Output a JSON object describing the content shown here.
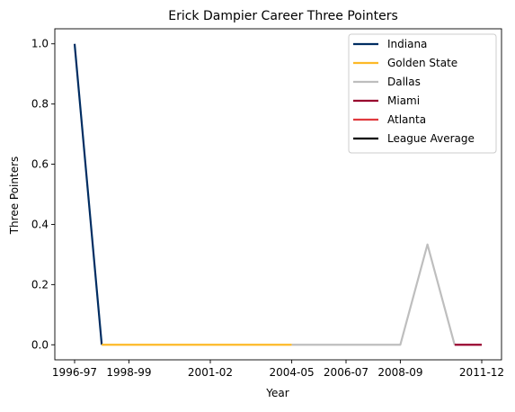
{
  "chart_data": {
    "type": "line",
    "title": "Erick Dampier Career Three Pointers",
    "xlabel": "Year",
    "ylabel": "Three Pointers",
    "categories": [
      "1996-97",
      "1997-98",
      "1998-99",
      "1999-00",
      "2000-01",
      "2001-02",
      "2002-03",
      "2003-04",
      "2004-05",
      "2005-06",
      "2006-07",
      "2007-08",
      "2008-09",
      "2009-10",
      "2010-11",
      "2011-12"
    ],
    "xticks": [
      "1996-97",
      "1998-99",
      "2001-02",
      "2004-05",
      "2006-07",
      "2008-09",
      "2011-12"
    ],
    "ylim": [
      -0.05,
      1.05
    ],
    "yticks": [
      0.0,
      0.2,
      0.4,
      0.6,
      0.8,
      1.0
    ],
    "ytick_labels": [
      "0.0",
      "0.2",
      "0.4",
      "0.6",
      "0.8",
      "1.0"
    ],
    "grid": false,
    "legend_position": "top-right",
    "series": [
      {
        "name": "Indiana",
        "color": "#002D62",
        "points": [
          [
            "1996-97",
            1.0
          ],
          [
            "1997-98",
            0.0
          ]
        ]
      },
      {
        "name": "Golden State",
        "color": "#FDB927",
        "points": [
          [
            "1997-98",
            0.0
          ],
          [
            "1998-99",
            0.0
          ],
          [
            "1999-00",
            0.0
          ],
          [
            "2000-01",
            0.0
          ],
          [
            "2001-02",
            0.0
          ],
          [
            "2002-03",
            0.0
          ],
          [
            "2003-04",
            0.0
          ],
          [
            "2004-05",
            0.0
          ]
        ]
      },
      {
        "name": "Dallas",
        "color": "#BEBEBE",
        "points": [
          [
            "2004-05",
            0.0
          ],
          [
            "2005-06",
            0.0
          ],
          [
            "2006-07",
            0.0
          ],
          [
            "2007-08",
            0.0
          ],
          [
            "2008-09",
            0.0
          ],
          [
            "2009-10",
            0.3333
          ],
          [
            "2010-11",
            0.0
          ]
        ]
      },
      {
        "name": "Miami",
        "color": "#98002E",
        "points": [
          [
            "2010-11",
            0.0
          ],
          [
            "2011-12",
            0.0
          ]
        ]
      },
      {
        "name": "Atlanta",
        "color": "#E03A3E",
        "points": []
      },
      {
        "name": "League Average",
        "color": "#000000",
        "points": []
      }
    ]
  }
}
